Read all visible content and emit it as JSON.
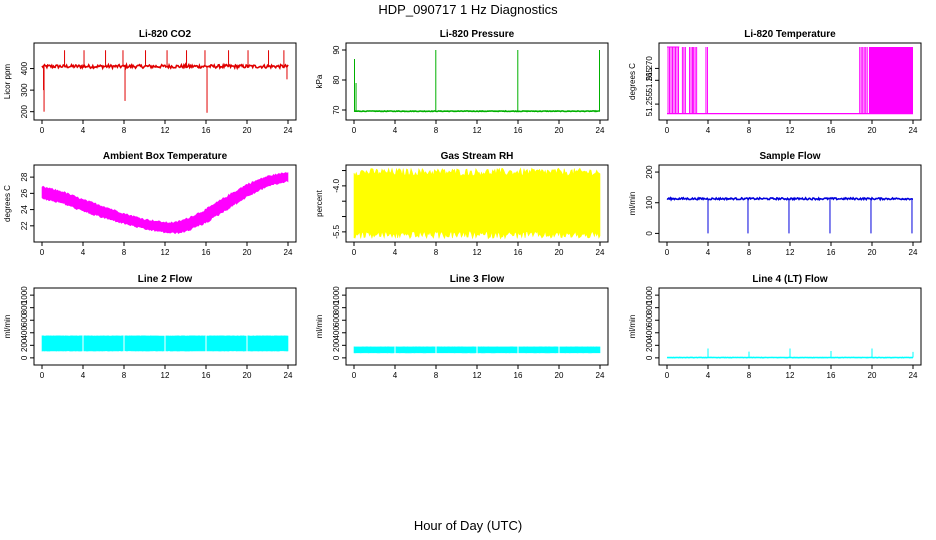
{
  "figure": {
    "title": "HDP_090717  1 Hz Diagnostics",
    "xlabel": "Hour of Day (UTC)"
  },
  "chart_data": [
    {
      "id": "co2",
      "type": "line",
      "title": "Li-820 CO2",
      "ylabel": "Licor ppm",
      "color": "#e00000",
      "xlim": [
        0,
        24
      ],
      "ylim": [
        180,
        500
      ],
      "xticks": [
        0,
        4,
        8,
        12,
        16,
        20,
        24
      ],
      "yticks": [
        200,
        300,
        400
      ],
      "ytick_labels": [
        "200",
        "300",
        "400"
      ],
      "baseline": 410,
      "noise": 8,
      "events": [
        {
          "x": 0.15,
          "y": 300
        },
        {
          "x": 0.2,
          "y": 200
        },
        {
          "x": 2.2,
          "y": 485
        },
        {
          "x": 4.1,
          "y": 485
        },
        {
          "x": 6.2,
          "y": 485
        },
        {
          "x": 7.9,
          "y": 485
        },
        {
          "x": 8.1,
          "y": 250
        },
        {
          "x": 10.1,
          "y": 485
        },
        {
          "x": 12.2,
          "y": 485
        },
        {
          "x": 14.1,
          "y": 485
        },
        {
          "x": 15.9,
          "y": 485
        },
        {
          "x": 16.1,
          "y": 195
        },
        {
          "x": 18.2,
          "y": 485
        },
        {
          "x": 20.1,
          "y": 485
        },
        {
          "x": 22.1,
          "y": 485
        },
        {
          "x": 23.6,
          "y": 485
        },
        {
          "x": 23.9,
          "y": 350
        }
      ]
    },
    {
      "id": "pressure",
      "type": "line",
      "title": "Li-820 Pressure",
      "ylabel": "kPa",
      "color": "#00b000",
      "xlim": [
        0,
        24
      ],
      "ylim": [
        68,
        91
      ],
      "xticks": [
        0,
        4,
        8,
        12,
        16,
        20,
        24
      ],
      "yticks": [
        70,
        80,
        90
      ],
      "ytick_labels": [
        "70",
        "80",
        "90"
      ],
      "baseline": 69.6,
      "noise": 0.1,
      "events": [
        {
          "x": 0.05,
          "y": 87
        },
        {
          "x": 0.2,
          "y": 79
        },
        {
          "x": 7.98,
          "y": 90
        },
        {
          "x": 15.98,
          "y": 90
        },
        {
          "x": 23.95,
          "y": 90
        }
      ]
    },
    {
      "id": "licor-temp",
      "type": "line",
      "title": "Li-820 Temperature",
      "ylabel": "degrees C",
      "color": "#ff00ff",
      "xlim": [
        0,
        24
      ],
      "ylim": [
        51.25,
        51.279
      ],
      "xticks": [
        0,
        4,
        8,
        12,
        16,
        20,
        24
      ],
      "yticks": [
        51.255,
        51.265,
        51.27
      ],
      "ytick_labels": [
        "51.255",
        "51.265",
        "51.270"
      ],
      "low": 51.251,
      "high": 51.279,
      "bursts": [
        [
          0.1,
          1.2
        ],
        [
          1.5,
          1.8
        ],
        [
          2.2,
          2.5
        ],
        [
          2.6,
          2.9
        ],
        [
          3.8,
          4.0
        ],
        [
          18.8,
          19.6
        ],
        [
          19.7,
          24
        ]
      ]
    },
    {
      "id": "box-temp",
      "type": "area",
      "title": "Ambient Box Temperature",
      "ylabel": "degrees C",
      "color": "#ff00ff",
      "xlim": [
        0,
        24
      ],
      "ylim": [
        20.5,
        29
      ],
      "xticks": [
        0,
        4,
        8,
        12,
        16,
        20,
        24
      ],
      "yticks": [
        22,
        24,
        26,
        28
      ],
      "ytick_labels": [
        "22",
        "24",
        "26",
        "28"
      ],
      "x": [
        0,
        2,
        4,
        6,
        8,
        10,
        12,
        13,
        14,
        16,
        18,
        20,
        22,
        24
      ],
      "y_min": [
        25.4,
        24.8,
        23.8,
        23.0,
        22.3,
        21.6,
        21.2,
        21.1,
        21.3,
        22.4,
        24.0,
        25.6,
        26.9,
        27.5
      ],
      "y_max": [
        26.8,
        26.2,
        25.2,
        24.4,
        23.5,
        22.8,
        22.4,
        22.4,
        22.8,
        24.0,
        25.6,
        27.1,
        28.1,
        28.6
      ]
    },
    {
      "id": "rh",
      "type": "area",
      "title": "Gas Stream RH",
      "ylabel": "percent",
      "color": "#ffff00",
      "xlim": [
        0,
        24
      ],
      "ylim": [
        -5.7,
        -3.45
      ],
      "xticks": [
        0,
        4,
        8,
        12,
        16,
        20,
        24
      ],
      "yticks": [
        -5.5,
        -5.0,
        -4.5,
        -4.0,
        -3.5
      ],
      "ytick_labels": [
        "-5.5",
        "",
        "",
        "-4.0",
        ""
      ],
      "x": [
        0,
        24
      ],
      "y_min": [
        -5.6,
        -5.6
      ],
      "y_max": [
        -3.55,
        -3.55
      ]
    },
    {
      "id": "sample-flow",
      "type": "line",
      "title": "Sample Flow",
      "ylabel": "ml/min",
      "color": "#0000dd",
      "xlim": [
        0,
        24
      ],
      "ylim": [
        -15,
        210
      ],
      "xticks": [
        0,
        4,
        8,
        12,
        16,
        20,
        24
      ],
      "yticks": [
        0,
        100,
        200
      ],
      "ytick_labels": [
        "0",
        "100",
        "200"
      ],
      "baseline": 113,
      "noise": 3,
      "events": [
        {
          "x": 4.0,
          "y": 0
        },
        {
          "x": 7.9,
          "y": 0
        },
        {
          "x": 11.9,
          "y": 0
        },
        {
          "x": 15.9,
          "y": 0
        },
        {
          "x": 19.9,
          "y": 0
        },
        {
          "x": 23.9,
          "y": 0
        }
      ]
    },
    {
      "id": "line2-flow",
      "type": "area",
      "title": "Line 2 Flow",
      "ylabel": "ml/min",
      "color": "#00ffff",
      "xlim": [
        0,
        24
      ],
      "ylim": [
        -50,
        1050
      ],
      "xticks": [
        0,
        4,
        8,
        12,
        16,
        20,
        24
      ],
      "yticks": [
        0,
        200,
        400,
        600,
        800,
        1000
      ],
      "ytick_labels": [
        "0",
        "200",
        "400",
        "600",
        "800",
        "1000"
      ],
      "x": [
        0,
        24
      ],
      "y_min": [
        110,
        110
      ],
      "y_max": [
        350,
        350
      ],
      "gaps": [
        4,
        8,
        12,
        16,
        20
      ]
    },
    {
      "id": "line3-flow",
      "type": "area",
      "title": "Line 3 Flow",
      "ylabel": "ml/min",
      "color": "#00ffff",
      "xlim": [
        0,
        24
      ],
      "ylim": [
        -50,
        1050
      ],
      "xticks": [
        0,
        4,
        8,
        12,
        16,
        20,
        24
      ],
      "yticks": [
        0,
        200,
        400,
        600,
        800,
        1000
      ],
      "ytick_labels": [
        "0",
        "200",
        "400",
        "600",
        "800",
        "1000"
      ],
      "x": [
        0,
        24
      ],
      "y_min": [
        80,
        80
      ],
      "y_max": [
        175,
        175
      ],
      "gaps": [
        4,
        8,
        12,
        16,
        20
      ]
    },
    {
      "id": "line4-flow",
      "type": "line",
      "title": "Line 4 (LT) Flow",
      "ylabel": "ml/min",
      "color": "#00ffff",
      "xlim": [
        0,
        24
      ],
      "ylim": [
        -50,
        1050
      ],
      "xticks": [
        0,
        4,
        8,
        12,
        16,
        20,
        24
      ],
      "yticks": [
        0,
        200,
        400,
        600,
        800,
        1000
      ],
      "ytick_labels": [
        "0",
        "200",
        "400",
        "600",
        "800",
        "1000"
      ],
      "baseline": 5,
      "noise": 3,
      "events": [
        {
          "x": 4.0,
          "y": 150
        },
        {
          "x": 8.0,
          "y": 100
        },
        {
          "x": 12.0,
          "y": 150
        },
        {
          "x": 16.0,
          "y": 110
        },
        {
          "x": 20.0,
          "y": 150
        },
        {
          "x": 24.0,
          "y": 95
        }
      ]
    }
  ]
}
